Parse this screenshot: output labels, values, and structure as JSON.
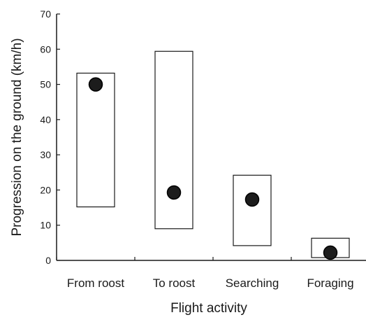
{
  "chart_data": {
    "type": "box-range",
    "title": "",
    "xlabel": "Flight activity",
    "ylabel": "Progression on the ground (km/h)",
    "ylim": [
      0,
      70
    ],
    "yticks": [
      0,
      10,
      20,
      30,
      40,
      50,
      60,
      70
    ],
    "grid": false,
    "legend": "none",
    "categories": [
      "From roost",
      "To roost",
      "Searching",
      "Foraging"
    ],
    "series": [
      {
        "range_low": [
          15.2,
          9.0,
          4.2,
          0.8
        ],
        "range_high": [
          53.2,
          59.4,
          24.2,
          6.3
        ],
        "point": [
          50.0,
          19.3,
          17.3,
          2.2
        ]
      }
    ],
    "colors": {
      "axis": "#1a1a1a",
      "box_stroke": "#1a1a1a",
      "box_fill": "#ffffff",
      "point_fill": "#1c1c1c",
      "point_stroke": "#000000"
    }
  }
}
